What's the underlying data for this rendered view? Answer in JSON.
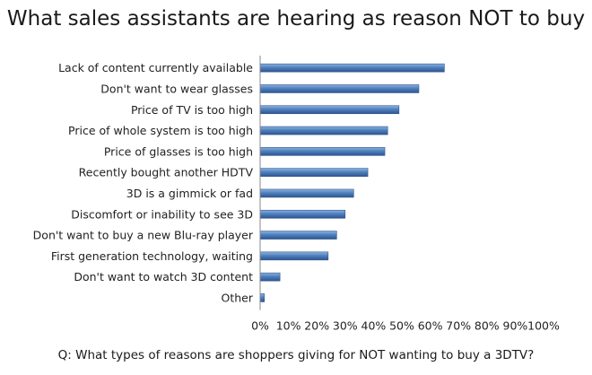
{
  "page": {
    "title": "What sales assistants are hearing as reason NOT to buy",
    "question": "Q: What types of reasons are shoppers giving for NOT wanting to buy a 3DTV?"
  },
  "colors": {
    "bar": "#4f81bd",
    "bar_light": "#8fb2df",
    "bar_dark": "#2e5590",
    "axis": "#888888"
  },
  "chart_data": {
    "type": "bar",
    "orientation": "horizontal",
    "title": "What sales assistants are hearing as reason NOT to buy",
    "xlabel": "",
    "ylabel": "",
    "xlim": [
      0,
      100
    ],
    "x_ticks": [
      "0%",
      "10%",
      "20%",
      "30%",
      "40%",
      "50%",
      "60%",
      "70%",
      "80%",
      "90%",
      "100%"
    ],
    "grid": false,
    "legend": "none",
    "categories": [
      "Lack of content currently available",
      "Don't want to wear glasses",
      "Price of TV is too high",
      "Price of whole system is too high",
      "Price of glasses is too high",
      "Recently bought another HDTV",
      "3D is a gimmick or fad",
      "Discomfort or inability to see 3D",
      "Don't want to buy a new Blu-ray player",
      "First generation technology, waiting",
      "Don't want to watch 3D content",
      "Other"
    ],
    "values": [
      65,
      56,
      49,
      45,
      44,
      38,
      33,
      30,
      27,
      24,
      7,
      1.5
    ]
  }
}
